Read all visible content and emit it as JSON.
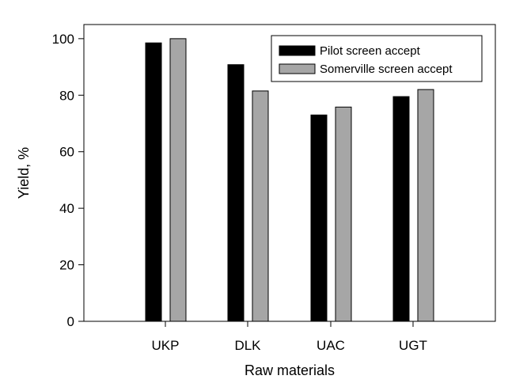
{
  "chart_data": {
    "type": "bar",
    "title": "",
    "xlabel": "Raw materials",
    "ylabel": "Yield, %",
    "categories": [
      "UKP",
      "DLK",
      "UAC",
      "UGT"
    ],
    "series": [
      {
        "name": "Pilot screen accept",
        "values": [
          98.5,
          90.8,
          73.0,
          79.5
        ],
        "color": "#000000"
      },
      {
        "name": "Somerville screen accept",
        "values": [
          100.0,
          81.5,
          75.8,
          82.0
        ],
        "color": "#a6a6a6"
      }
    ],
    "ylim": [
      0,
      105
    ],
    "yticks": [
      0,
      20,
      40,
      60,
      80,
      100
    ],
    "grid": false,
    "legend_position": "top-right"
  }
}
